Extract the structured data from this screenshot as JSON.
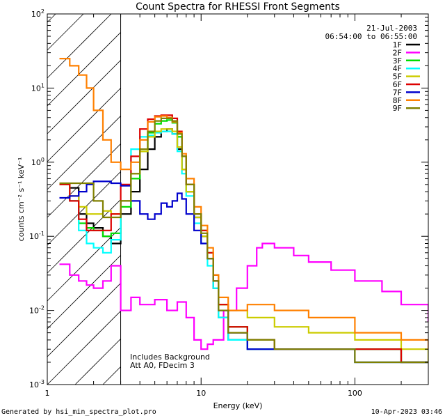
{
  "chart_data": {
    "type": "line",
    "title": "Count Spectra for RHESSI Front Segments",
    "xlabel": "Energy (keV)",
    "ylabel": "counts cm⁻² s⁻¹ keV⁻¹",
    "xscale": "log",
    "yscale": "log",
    "xlim": [
      1,
      300
    ],
    "ylim": [
      0.001,
      100
    ],
    "x_ticks": [
      {
        "v": 1,
        "label": "1"
      },
      {
        "v": 10,
        "label": "10"
      },
      {
        "v": 100,
        "label": "100"
      }
    ],
    "y_ticks": [
      {
        "v": 100,
        "base": "10",
        "exp": "2"
      },
      {
        "v": 10,
        "base": "10",
        "exp": "1"
      },
      {
        "v": 1,
        "base": "10",
        "exp": "0"
      },
      {
        "v": 0.1,
        "base": "10",
        "exp": "-1"
      },
      {
        "v": 0.01,
        "base": "10",
        "exp": "-2"
      },
      {
        "v": 0.001,
        "base": "10",
        "exp": "-3"
      }
    ],
    "date": "21-Jul-2003",
    "time_range": "06:54:00 to 06:55:00",
    "hatch_region_kev": [
      1,
      3
    ],
    "annotations": [
      "Includes Background",
      "Att A0, FDecim 3"
    ],
    "footer_left": "Generated by hsi_min_spectra_plot.pro",
    "footer_right": "10-Apr-2023 03:46",
    "series": [
      {
        "name": "1F",
        "color": "#000000",
        "x": [
          1.2,
          1.4,
          1.6,
          1.8,
          2.0,
          2.3,
          2.6,
          3.0,
          3.5,
          4.0,
          4.5,
          5.0,
          5.5,
          6.0,
          6.5,
          7.0,
          7.5,
          8.0,
          9.0,
          10.0,
          11.0,
          12.0,
          13.0,
          15.0,
          20.0,
          30.0,
          50.0,
          100.0,
          200.0,
          300.0
        ],
        "y": [
          0.5,
          0.45,
          0.2,
          0.15,
          0.13,
          0.1,
          0.08,
          0.2,
          0.4,
          0.8,
          1.5,
          2.2,
          2.6,
          2.8,
          2.4,
          1.5,
          0.8,
          0.4,
          0.18,
          0.1,
          0.05,
          0.02,
          0.008,
          0.004,
          0.003,
          0.003,
          0.003,
          0.003,
          0.002,
          0.002
        ]
      },
      {
        "name": "2F",
        "color": "#ff00ff",
        "x": [
          1.2,
          1.4,
          1.6,
          1.8,
          2.0,
          2.3,
          2.6,
          3.0,
          3.5,
          4.0,
          5.0,
          6.0,
          7.0,
          8.0,
          9.0,
          10.0,
          11.0,
          12.0,
          14.0,
          17.0,
          20.0,
          23.0,
          25.0,
          30.0,
          40.0,
          50.0,
          70.0,
          100.0,
          150.0,
          200.0,
          300.0
        ],
        "y": [
          0.042,
          0.03,
          0.025,
          0.022,
          0.02,
          0.025,
          0.04,
          0.01,
          0.015,
          0.012,
          0.014,
          0.01,
          0.013,
          0.008,
          0.004,
          0.003,
          0.0035,
          0.004,
          0.01,
          0.02,
          0.04,
          0.07,
          0.08,
          0.07,
          0.055,
          0.045,
          0.035,
          0.025,
          0.018,
          0.012,
          0.007
        ]
      },
      {
        "name": "3F",
        "color": "#00dd00",
        "x": [
          1.2,
          1.4,
          1.6,
          1.8,
          2.0,
          2.3,
          2.6,
          3.0,
          3.5,
          4.0,
          4.5,
          5.0,
          5.5,
          6.0,
          6.5,
          7.0,
          7.5,
          8.0,
          9.0,
          10.0,
          11.0,
          12.0,
          13.0,
          15.0,
          20.0,
          30.0,
          50.0,
          100.0,
          200.0,
          300.0
        ],
        "y": [
          0.5,
          0.3,
          0.15,
          0.13,
          0.12,
          0.1,
          0.11,
          0.25,
          0.6,
          1.4,
          2.5,
          3.3,
          3.6,
          3.7,
          3.4,
          2.2,
          1.2,
          0.5,
          0.2,
          0.12,
          0.06,
          0.03,
          0.012,
          0.006,
          0.004,
          0.003,
          0.003,
          0.003,
          0.002,
          0.002
        ]
      },
      {
        "name": "4F",
        "color": "#00ffff",
        "x": [
          1.2,
          1.4,
          1.6,
          1.8,
          2.0,
          2.3,
          2.6,
          3.0,
          3.5,
          4.0,
          4.5,
          5.0,
          5.5,
          6.0,
          6.5,
          7.0,
          7.5,
          8.0,
          9.0,
          10.0,
          11.0,
          12.0,
          13.0,
          15.0,
          20.0,
          30.0,
          50.0,
          100.0,
          200.0,
          300.0
        ],
        "y": [
          0.5,
          0.3,
          0.12,
          0.08,
          0.07,
          0.06,
          0.09,
          0.3,
          1.5,
          2.2,
          2.3,
          2.5,
          2.6,
          2.6,
          2.4,
          1.4,
          0.7,
          0.35,
          0.15,
          0.08,
          0.04,
          0.02,
          0.008,
          0.004,
          0.003,
          0.003,
          0.003,
          0.002,
          0.002,
          0.002
        ]
      },
      {
        "name": "5F",
        "color": "#cccc00",
        "x": [
          1.2,
          1.4,
          1.6,
          1.8,
          2.0,
          2.3,
          2.6,
          3.0,
          3.5,
          4.0,
          4.5,
          5.0,
          5.5,
          6.0,
          6.5,
          7.0,
          7.5,
          8.0,
          9.0,
          10.0,
          11.0,
          12.0,
          13.0,
          15.0,
          20.0,
          30.0,
          50.0,
          100.0,
          200.0,
          300.0
        ],
        "y": [
          0.5,
          0.35,
          0.25,
          0.2,
          0.2,
          0.22,
          0.2,
          0.3,
          0.7,
          1.4,
          2.2,
          2.6,
          2.8,
          2.8,
          2.6,
          1.6,
          0.8,
          0.4,
          0.18,
          0.1,
          0.05,
          0.025,
          0.012,
          0.01,
          0.008,
          0.006,
          0.005,
          0.004,
          0.003,
          0.002
        ]
      },
      {
        "name": "6F",
        "color": "#dd0000",
        "x": [
          1.2,
          1.4,
          1.6,
          1.8,
          2.0,
          2.3,
          2.6,
          3.0,
          3.5,
          4.0,
          4.5,
          5.0,
          5.5,
          6.0,
          6.5,
          7.0,
          7.5,
          8.0,
          9.0,
          10.0,
          11.0,
          12.0,
          13.0,
          15.0,
          20.0,
          30.0,
          50.0,
          100.0,
          200.0,
          300.0
        ],
        "y": [
          0.5,
          0.3,
          0.17,
          0.12,
          0.12,
          0.12,
          0.2,
          0.5,
          1.2,
          2.8,
          3.8,
          4.2,
          4.3,
          4.3,
          3.9,
          2.6,
          1.2,
          0.5,
          0.2,
          0.12,
          0.06,
          0.03,
          0.012,
          0.006,
          0.004,
          0.003,
          0.003,
          0.003,
          0.002,
          0.002
        ]
      },
      {
        "name": "7F",
        "color": "#0000cc",
        "x": [
          1.2,
          1.4,
          1.6,
          1.8,
          2.0,
          2.3,
          2.6,
          3.0,
          3.5,
          4.0,
          4.5,
          5.0,
          5.5,
          6.0,
          6.5,
          7.0,
          7.5,
          8.0,
          9.0,
          10.0,
          11.0,
          12.0,
          13.0,
          15.0,
          20.0,
          30.0,
          50.0,
          100.0,
          200.0,
          300.0
        ],
        "y": [
          0.33,
          0.35,
          0.4,
          0.5,
          0.55,
          0.55,
          0.52,
          0.48,
          0.3,
          0.2,
          0.17,
          0.2,
          0.28,
          0.25,
          0.3,
          0.38,
          0.32,
          0.2,
          0.12,
          0.08,
          0.05,
          0.025,
          0.01,
          0.005,
          0.003,
          0.003,
          0.003,
          0.002,
          0.002,
          0.002
        ]
      },
      {
        "name": "8F",
        "color": "#ff8000",
        "x": [
          1.2,
          1.4,
          1.6,
          1.8,
          2.0,
          2.3,
          2.6,
          3.0,
          3.5,
          4.0,
          4.5,
          5.0,
          5.5,
          6.0,
          6.5,
          7.0,
          7.5,
          8.0,
          9.0,
          10.0,
          11.0,
          12.0,
          13.0,
          15.0,
          20.0,
          30.0,
          50.0,
          100.0,
          200.0,
          300.0
        ],
        "y": [
          25,
          20,
          15,
          10,
          5,
          2,
          1,
          0.8,
          1.0,
          2.0,
          3.5,
          4.1,
          4.2,
          4.0,
          3.5,
          2.5,
          1.3,
          0.6,
          0.25,
          0.14,
          0.07,
          0.03,
          0.015,
          0.01,
          0.012,
          0.01,
          0.008,
          0.005,
          0.004,
          0.003
        ]
      },
      {
        "name": "9F",
        "color": "#808000",
        "x": [
          1.2,
          1.4,
          1.6,
          1.8,
          2.0,
          2.3,
          2.6,
          3.0,
          3.5,
          4.0,
          4.5,
          5.0,
          5.5,
          6.0,
          6.5,
          7.0,
          7.5,
          8.0,
          9.0,
          10.0,
          11.0,
          12.0,
          13.0,
          15.0,
          20.0,
          30.0,
          50.0,
          100.0,
          200.0,
          300.0
        ],
        "y": [
          0.52,
          0.52,
          0.52,
          0.52,
          0.3,
          0.18,
          0.18,
          0.3,
          0.7,
          1.5,
          2.6,
          3.6,
          3.9,
          3.9,
          3.6,
          2.4,
          1.2,
          0.5,
          0.2,
          0.11,
          0.05,
          0.025,
          0.01,
          0.005,
          0.004,
          0.003,
          0.003,
          0.002,
          0.002,
          0.002
        ]
      }
    ]
  }
}
